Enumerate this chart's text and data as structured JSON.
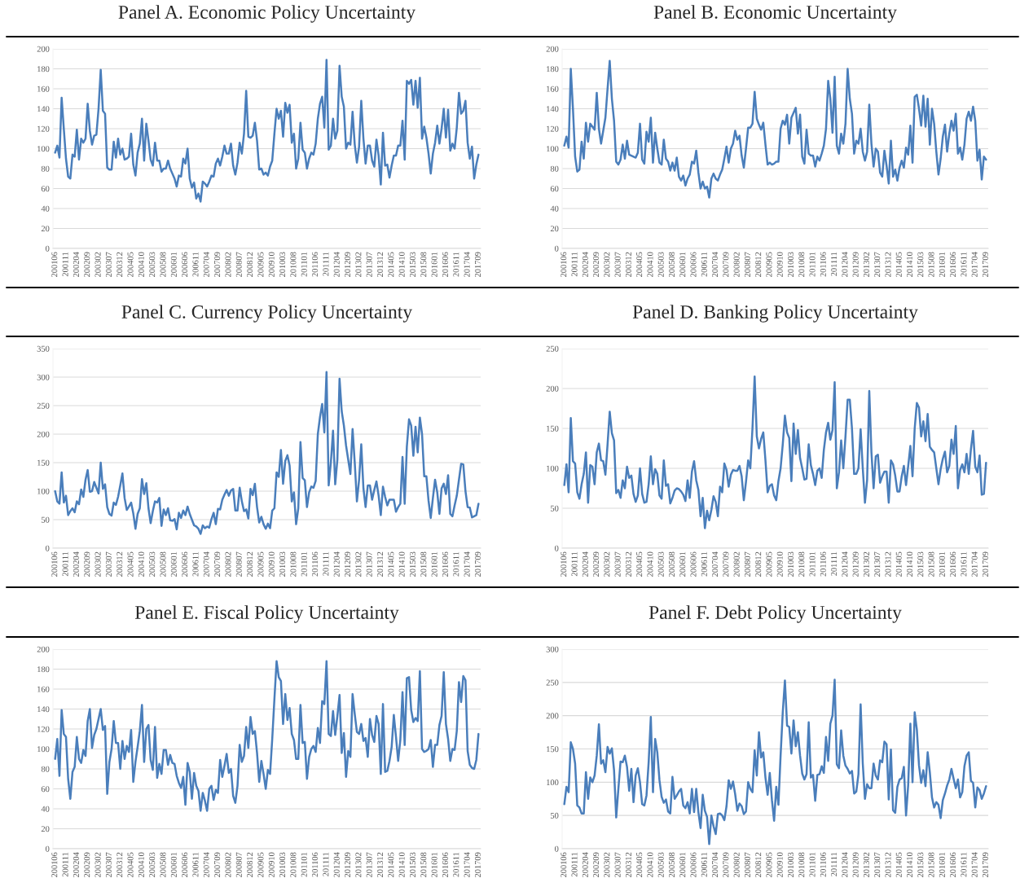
{
  "chart_data": [
    {
      "type": "line",
      "title": "Panel A. Economic Policy Uncertainty",
      "grid": "y",
      "ylim": [
        0,
        200
      ],
      "yticks": [
        0,
        20,
        40,
        60,
        80,
        100,
        120,
        140,
        160,
        180,
        200
      ],
      "categories": [
        "200106",
        null,
        null,
        null,
        null,
        "200111",
        null,
        null,
        null,
        null,
        "200204",
        null,
        null,
        null,
        null,
        "200209",
        null,
        null,
        null,
        null,
        "200302",
        null,
        null,
        null,
        null,
        "200307",
        null,
        null,
        null,
        null,
        "200312",
        null,
        null,
        null,
        null,
        "200405",
        null,
        null,
        null,
        null,
        "200410",
        null,
        null,
        null,
        null,
        "200503",
        null,
        null,
        null,
        null,
        "200508",
        null,
        null,
        null,
        null,
        "200601",
        null,
        null,
        null,
        null,
        "200606",
        null,
        null,
        null,
        null,
        "200611",
        null,
        null,
        null,
        null,
        "200704",
        null,
        null,
        null,
        null,
        "200709",
        null,
        null,
        null,
        null,
        "200802",
        null,
        null,
        null,
        null,
        "200807",
        null,
        null,
        null,
        null,
        "200812",
        null,
        null,
        null,
        null,
        "200905",
        null,
        null,
        null,
        null,
        "200910",
        null,
        null,
        null,
        null,
        "201003",
        null,
        null,
        null,
        null,
        "201008",
        null,
        null,
        null,
        null,
        "201101",
        null,
        null,
        null,
        null,
        "201106",
        null,
        null,
        null,
        null,
        "201111",
        null,
        null,
        null,
        null,
        "201204",
        null,
        null,
        null,
        null,
        "201209",
        null,
        null,
        null,
        null,
        "201302",
        null,
        null,
        null,
        null,
        "201307",
        null,
        null,
        null,
        null,
        "201312",
        null,
        null,
        null,
        null,
        "201405",
        null,
        null,
        null,
        null,
        "201410",
        null,
        null,
        null,
        null,
        "201503",
        null,
        null,
        null,
        null,
        "201508",
        null,
        null,
        null,
        null,
        "201601",
        null,
        null,
        null,
        null,
        "201606",
        null,
        null,
        null,
        null,
        "201611",
        null,
        null,
        null,
        null,
        "201704",
        null,
        null,
        null,
        null,
        "201709"
      ],
      "series": [
        {
          "color": "#4a7ebb",
          "values": [
            96,
            103,
            91,
            151,
            120,
            90,
            72,
            70,
            94,
            92,
            119,
            89,
            110,
            106,
            110,
            145,
            118,
            104,
            113,
            114,
            140,
            179,
            138,
            135,
            81,
            79,
            79,
            107,
            91,
            110,
            94,
            100,
            89,
            90,
            92,
            115,
            84,
            73,
            96,
            105,
            130,
            88,
            125,
            108,
            89,
            83,
            106,
            88,
            88,
            77,
            80,
            80,
            88,
            80,
            75,
            70,
            62,
            73,
            72,
            90,
            85,
            100,
            70,
            61,
            66,
            50,
            55,
            47,
            67,
            65,
            62,
            67,
            73,
            72,
            85,
            90,
            83,
            92,
            103,
            95,
            95,
            105,
            83,
            74,
            86,
            106,
            95,
            115,
            158,
            112,
            111,
            113,
            126,
            108,
            79,
            80,
            74,
            76,
            73,
            82,
            88,
            115,
            140,
            130,
            138,
            112,
            146,
            136,
            144,
            106,
            115,
            80,
            90,
            126,
            99,
            96,
            80,
            90,
            96,
            94,
            105,
            130,
            145,
            152,
            121,
            189,
            99,
            103,
            130,
            110,
            118,
            183,
            152,
            142,
            100,
            106,
            104,
            137,
            104,
            86,
            102,
            148,
            110,
            85,
            103,
            103,
            88,
            82,
            109,
            93,
            64,
            116,
            83,
            84,
            71,
            83,
            93,
            93,
            103,
            103,
            128,
            89,
            168,
            165,
            169,
            144,
            168,
            141,
            171,
            110,
            122,
            111,
            95,
            75,
            95,
            106,
            123,
            105,
            120,
            140,
            111,
            139,
            98,
            105,
            100,
            121,
            156,
            135,
            138,
            148,
            106,
            90,
            102,
            70,
            84,
            94
          ]
        }
      ]
    },
    {
      "type": "line",
      "title": "Panel B. Economic Uncertainty",
      "grid": "y",
      "ylim": [
        0,
        200
      ],
      "yticks": [
        0,
        20,
        40,
        60,
        80,
        100,
        120,
        140,
        160,
        180,
        200
      ],
      "categories": [
        "200106",
        null,
        null,
        null,
        null,
        "200111",
        null,
        null,
        null,
        null,
        "200204",
        null,
        null,
        null,
        null,
        "200209",
        null,
        null,
        null,
        null,
        "200302",
        null,
        null,
        null,
        null,
        "200307",
        null,
        null,
        null,
        null,
        "200312",
        null,
        null,
        null,
        null,
        "200405",
        null,
        null,
        null,
        null,
        "200410",
        null,
        null,
        null,
        null,
        "200503",
        null,
        null,
        null,
        null,
        "200508",
        null,
        null,
        null,
        null,
        "200601",
        null,
        null,
        null,
        null,
        "200606",
        null,
        null,
        null,
        null,
        "200611",
        null,
        null,
        null,
        null,
        "200704",
        null,
        null,
        null,
        null,
        "200709",
        null,
        null,
        null,
        null,
        "200802",
        null,
        null,
        null,
        null,
        "200807",
        null,
        null,
        null,
        null,
        "200812",
        null,
        null,
        null,
        null,
        "200905",
        null,
        null,
        null,
        null,
        "200910",
        null,
        null,
        null,
        null,
        "201003",
        null,
        null,
        null,
        null,
        "201008",
        null,
        null,
        null,
        null,
        "201101",
        null,
        null,
        null,
        null,
        "201106",
        null,
        null,
        null,
        null,
        "201111",
        null,
        null,
        null,
        null,
        "201204",
        null,
        null,
        null,
        null,
        "201209",
        null,
        null,
        null,
        null,
        "201302",
        null,
        null,
        null,
        null,
        "201307",
        null,
        null,
        null,
        null,
        "201312",
        null,
        null,
        null,
        null,
        "201405",
        null,
        null,
        null,
        null,
        "201410",
        null,
        null,
        null,
        null,
        "201503",
        null,
        null,
        null,
        null,
        "201508",
        null,
        null,
        null,
        null,
        "201601",
        null,
        null,
        null,
        null,
        "201606",
        null,
        null,
        null,
        null,
        "201611",
        null,
        null,
        null,
        null,
        "201704",
        null,
        null,
        null,
        null,
        "201709"
      ],
      "series": [
        {
          "color": "#4a7ebb",
          "values": [
            103,
            112,
            101,
            180,
            140,
            92,
            77,
            79,
            107,
            90,
            126,
            107,
            125,
            122,
            119,
            156,
            120,
            105,
            118,
            131,
            160,
            188,
            150,
            128,
            87,
            84,
            89,
            104,
            90,
            108,
            94,
            93,
            92,
            91,
            96,
            125,
            89,
            85,
            117,
            107,
            131,
            86,
            116,
            100,
            86,
            84,
            109,
            90,
            87,
            78,
            86,
            78,
            91,
            72,
            68,
            73,
            63,
            70,
            74,
            87,
            85,
            98,
            76,
            60,
            67,
            60,
            62,
            51,
            70,
            75,
            70,
            68,
            74,
            79,
            90,
            102,
            86,
            100,
            105,
            118,
            109,
            113,
            93,
            81,
            100,
            121,
            121,
            125,
            157,
            130,
            124,
            119,
            126,
            104,
            84,
            86,
            84,
            85,
            87,
            87,
            120,
            128,
            124,
            134,
            105,
            131,
            136,
            141,
            115,
            134,
            92,
            85,
            119,
            95,
            93,
            93,
            82,
            92,
            88,
            95,
            103,
            120,
            168,
            150,
            116,
            172,
            103,
            95,
            115,
            105,
            125,
            180,
            150,
            135,
            95,
            108,
            105,
            120,
            97,
            88,
            97,
            144,
            105,
            82,
            100,
            97,
            76,
            72,
            98,
            83,
            65,
            108,
            72,
            79,
            68,
            81,
            88,
            81,
            101,
            94,
            123,
            86,
            152,
            154,
            140,
            123,
            153,
            122,
            150,
            104,
            140,
            125,
            97,
            74,
            90,
            112,
            124,
            97,
            115,
            128,
            118,
            135,
            95,
            101,
            89,
            104,
            130,
            137,
            128,
            142,
            128,
            88,
            99,
            69,
            92,
            89
          ]
        }
      ]
    },
    {
      "type": "line",
      "title": "Panel C. Currency Policy Uncertainty",
      "grid": "y",
      "ylim": [
        0,
        350
      ],
      "yticks": [
        0,
        50,
        100,
        150,
        200,
        250,
        300,
        350
      ],
      "categories": [
        "200106",
        null,
        null,
        null,
        null,
        "200111",
        null,
        null,
        null,
        null,
        "200204",
        null,
        null,
        null,
        null,
        "200209",
        null,
        null,
        null,
        null,
        "200302",
        null,
        null,
        null,
        null,
        "200307",
        null,
        null,
        null,
        null,
        "200312",
        null,
        null,
        null,
        null,
        "200405",
        null,
        null,
        null,
        null,
        "200410",
        null,
        null,
        null,
        null,
        "200503",
        null,
        null,
        null,
        null,
        "200508",
        null,
        null,
        null,
        null,
        "200601",
        null,
        null,
        null,
        null,
        "200606",
        null,
        null,
        null,
        null,
        "200611",
        null,
        null,
        null,
        null,
        "200704",
        null,
        null,
        null,
        null,
        "200709",
        null,
        null,
        null,
        null,
        "200802",
        null,
        null,
        null,
        null,
        "200807",
        null,
        null,
        null,
        null,
        "200812",
        null,
        null,
        null,
        null,
        "200905",
        null,
        null,
        null,
        null,
        "200910",
        null,
        null,
        null,
        null,
        "201003",
        null,
        null,
        null,
        null,
        "201008",
        null,
        null,
        null,
        null,
        "201101",
        null,
        null,
        null,
        null,
        "201106",
        null,
        null,
        null,
        null,
        "201111",
        null,
        null,
        null,
        null,
        "201204",
        null,
        null,
        null,
        null,
        "201209",
        null,
        null,
        null,
        null,
        "201302",
        null,
        null,
        null,
        null,
        "201307",
        null,
        null,
        null,
        null,
        "201312",
        null,
        null,
        null,
        null,
        "201405",
        null,
        null,
        null,
        null,
        "201410",
        null,
        null,
        null,
        null,
        "201503",
        null,
        null,
        null,
        null,
        "201508",
        null,
        null,
        null,
        null,
        "201601",
        null,
        null,
        null,
        null,
        "201606",
        null,
        null,
        null,
        null,
        "201611",
        null,
        null,
        null,
        null,
        "201704",
        null,
        null,
        null,
        null,
        "201709"
      ],
      "series": [
        {
          "color": "#4a7ebb",
          "values": [
            100,
            82,
            78,
            133,
            80,
            92,
            58,
            65,
            70,
            63,
            82,
            77,
            103,
            90,
            120,
            137,
            99,
            100,
            116,
            106,
            96,
            150,
            104,
            112,
            72,
            60,
            57,
            80,
            76,
            90,
            110,
            131,
            88,
            67,
            73,
            80,
            61,
            34,
            60,
            70,
            121,
            95,
            114,
            70,
            44,
            65,
            82,
            80,
            88,
            39,
            68,
            58,
            70,
            49,
            48,
            51,
            33,
            62,
            53,
            66,
            58,
            73,
            60,
            50,
            40,
            38,
            34,
            25,
            40,
            35,
            38,
            36,
            51,
            62,
            42,
            69,
            68,
            85,
            94,
            102,
            92,
            101,
            104,
            66,
            66,
            106,
            82,
            65,
            68,
            52,
            104,
            93,
            113,
            72,
            45,
            55,
            42,
            34,
            43,
            35,
            66,
            70,
            133,
            125,
            172,
            113,
            153,
            163,
            145,
            82,
            98,
            42,
            70,
            186,
            123,
            119,
            72,
            98,
            108,
            106,
            118,
            200,
            230,
            253,
            203,
            309,
            110,
            150,
            206,
            112,
            155,
            297,
            240,
            215,
            180,
            155,
            130,
            209,
            150,
            82,
            120,
            182,
            105,
            72,
            110,
            110,
            85,
            102,
            117,
            92,
            58,
            108,
            90,
            75,
            85,
            85,
            85,
            64,
            72,
            78,
            160,
            78,
            178,
            226,
            215,
            162,
            213,
            168,
            229,
            200,
            126,
            126,
            83,
            53,
            88,
            120,
            98,
            60,
            105,
            113,
            95,
            128,
            60,
            56,
            75,
            92,
            120,
            148,
            147,
            100,
            72,
            71,
            54,
            56,
            58,
            78
          ]
        }
      ]
    },
    {
      "type": "line",
      "title": "Panel D. Banking Policy Uncertainty",
      "grid": "y",
      "ylim": [
        0,
        250
      ],
      "yticks": [
        0,
        50,
        100,
        150,
        200,
        250
      ],
      "categories": [
        "200106",
        null,
        null,
        null,
        null,
        "200111",
        null,
        null,
        null,
        null,
        "200204",
        null,
        null,
        null,
        null,
        "200209",
        null,
        null,
        null,
        null,
        "200302",
        null,
        null,
        null,
        null,
        "200307",
        null,
        null,
        null,
        null,
        "200312",
        null,
        null,
        null,
        null,
        "200405",
        null,
        null,
        null,
        null,
        "200410",
        null,
        null,
        null,
        null,
        "200503",
        null,
        null,
        null,
        null,
        "200508",
        null,
        null,
        null,
        null,
        "200601",
        null,
        null,
        null,
        null,
        "200606",
        null,
        null,
        null,
        null,
        "200611",
        null,
        null,
        null,
        null,
        "200704",
        null,
        null,
        null,
        null,
        "200709",
        null,
        null,
        null,
        null,
        "200802",
        null,
        null,
        null,
        null,
        "200807",
        null,
        null,
        null,
        null,
        "200812",
        null,
        null,
        null,
        null,
        "200905",
        null,
        null,
        null,
        null,
        "200910",
        null,
        null,
        null,
        null,
        "201003",
        null,
        null,
        null,
        null,
        "201008",
        null,
        null,
        null,
        null,
        "201101",
        null,
        null,
        null,
        null,
        "201106",
        null,
        null,
        null,
        null,
        "201111",
        null,
        null,
        null,
        null,
        "201204",
        null,
        null,
        null,
        null,
        "201209",
        null,
        null,
        null,
        null,
        "201302",
        null,
        null,
        null,
        null,
        "201307",
        null,
        null,
        null,
        null,
        "201312",
        null,
        null,
        null,
        null,
        "201405",
        null,
        null,
        null,
        null,
        "201410",
        null,
        null,
        null,
        null,
        "201503",
        null,
        null,
        null,
        null,
        "201508",
        null,
        null,
        null,
        null,
        "201601",
        null,
        null,
        null,
        null,
        "201606",
        null,
        null,
        null,
        null,
        "201611",
        null,
        null,
        null,
        null,
        "201704",
        null,
        null,
        null,
        null,
        "201709"
      ],
      "series": [
        {
          "color": "#4a7ebb",
          "values": [
            79,
            105,
            70,
            163,
            109,
            106,
            70,
            62,
            80,
            93,
            120,
            57,
            104,
            102,
            80,
            120,
            131,
            110,
            109,
            92,
            130,
            171,
            144,
            135,
            69,
            73,
            63,
            85,
            75,
            102,
            88,
            91,
            68,
            58,
            66,
            100,
            68,
            57,
            58,
            80,
            115,
            80,
            99,
            93,
            66,
            62,
            110,
            78,
            80,
            56,
            63,
            72,
            75,
            74,
            71,
            67,
            59,
            85,
            63,
            96,
            109,
            85,
            73,
            40,
            63,
            25,
            47,
            35,
            48,
            65,
            58,
            40,
            77,
            70,
            106,
            98,
            77,
            92,
            98,
            97,
            97,
            103,
            90,
            60,
            83,
            110,
            100,
            150,
            215,
            140,
            125,
            137,
            145,
            110,
            70,
            78,
            80,
            66,
            60,
            84,
            100,
            130,
            166,
            145,
            138,
            84,
            156,
            118,
            148,
            113,
            100,
            86,
            87,
            130,
            104,
            93,
            79,
            97,
            100,
            88,
            123,
            145,
            157,
            136,
            148,
            208,
            75,
            95,
            135,
            100,
            140,
            186,
            186,
            150,
            93,
            93,
            100,
            149,
            100,
            57,
            85,
            197,
            120,
            75,
            115,
            117,
            82,
            90,
            96,
            96,
            57,
            110,
            105,
            91,
            71,
            71,
            90,
            103,
            79,
            103,
            128,
            90,
            150,
            182,
            176,
            140,
            159,
            134,
            168,
            127,
            123,
            120,
            100,
            80,
            99,
            112,
            121,
            95,
            103,
            136,
            118,
            153,
            75,
            98,
            105,
            95,
            118,
            93,
            124,
            147,
            102,
            95,
            116,
            67,
            68,
            107
          ]
        }
      ]
    },
    {
      "type": "line",
      "title": "Panel E. Fiscal Policy Uncertainty",
      "grid": "y",
      "ylim": [
        0,
        200
      ],
      "yticks": [
        0,
        20,
        40,
        60,
        80,
        100,
        120,
        140,
        160,
        180,
        200
      ],
      "categories": [
        "200106",
        null,
        null,
        null,
        null,
        "200111",
        null,
        null,
        null,
        null,
        "200204",
        null,
        null,
        null,
        null,
        "200209",
        null,
        null,
        null,
        null,
        "200302",
        null,
        null,
        null,
        null,
        "200307",
        null,
        null,
        null,
        null,
        "200312",
        null,
        null,
        null,
        null,
        "200405",
        null,
        null,
        null,
        null,
        "200410",
        null,
        null,
        null,
        null,
        "200503",
        null,
        null,
        null,
        null,
        "200508",
        null,
        null,
        null,
        null,
        "200601",
        null,
        null,
        null,
        null,
        "200606",
        null,
        null,
        null,
        null,
        "200611",
        null,
        null,
        null,
        null,
        "200704",
        null,
        null,
        null,
        null,
        "200709",
        null,
        null,
        null,
        null,
        "200802",
        null,
        null,
        null,
        null,
        "200807",
        null,
        null,
        null,
        null,
        "200812",
        null,
        null,
        null,
        null,
        "200905",
        null,
        null,
        null,
        null,
        "200910",
        null,
        null,
        null,
        null,
        "201003",
        null,
        null,
        null,
        null,
        "201008",
        null,
        null,
        null,
        null,
        "201101",
        null,
        null,
        null,
        null,
        "201106",
        null,
        null,
        null,
        null,
        "201111",
        null,
        null,
        null,
        null,
        "201204",
        null,
        null,
        null,
        null,
        "201209",
        null,
        null,
        null,
        null,
        "201302",
        null,
        null,
        null,
        null,
        "201307",
        null,
        null,
        null,
        null,
        "201312",
        null,
        null,
        null,
        null,
        "201405",
        null,
        null,
        null,
        null,
        "201410",
        null,
        null,
        null,
        null,
        "201503",
        null,
        null,
        null,
        null,
        "201508",
        null,
        null,
        null,
        null,
        "201601",
        null,
        null,
        null,
        null,
        "201606",
        null,
        null,
        null,
        null,
        "201611",
        null,
        null,
        null,
        null,
        "201704",
        null,
        null,
        null,
        null,
        "201709"
      ],
      "series": [
        {
          "color": "#4a7ebb",
          "values": [
            90,
            110,
            73,
            139,
            115,
            112,
            70,
            50,
            77,
            82,
            112,
            90,
            86,
            99,
            93,
            128,
            140,
            101,
            114,
            120,
            130,
            140,
            119,
            123,
            55,
            87,
            100,
            128,
            106,
            106,
            80,
            108,
            90,
            103,
            97,
            119,
            67,
            87,
            102,
            118,
            144,
            87,
            120,
            124,
            89,
            79,
            122,
            71,
            85,
            75,
            99,
            99,
            84,
            94,
            86,
            85,
            73,
            66,
            61,
            72,
            44,
            86,
            77,
            50,
            76,
            63,
            58,
            38,
            56,
            48,
            38,
            60,
            63,
            49,
            59,
            56,
            89,
            72,
            83,
            95,
            76,
            80,
            53,
            46,
            63,
            104,
            87,
            93,
            122,
            101,
            132,
            115,
            118,
            96,
            67,
            88,
            75,
            60,
            79,
            75,
            110,
            150,
            188,
            172,
            168,
            125,
            155,
            129,
            141,
            115,
            109,
            90,
            90,
            144,
            106,
            107,
            70,
            92,
            100,
            103,
            97,
            121,
            106,
            148,
            145,
            188,
            115,
            113,
            138,
            114,
            133,
            154,
            96,
            116,
            72,
            98,
            92,
            155,
            135,
            117,
            115,
            125,
            108,
            111,
            92,
            130,
            114,
            107,
            133,
            125,
            75,
            145,
            77,
            78,
            88,
            102,
            134,
            112,
            88,
            109,
            157,
            104,
            171,
            172,
            139,
            127,
            131,
            128,
            178,
            100,
            97,
            98,
            100,
            109,
            82,
            104,
            104,
            124,
            133,
            177,
            125,
            110,
            88,
            100,
            99,
            118,
            167,
            147,
            173,
            169,
            98,
            84,
            81,
            80,
            89,
            115
          ]
        }
      ]
    },
    {
      "type": "line",
      "title": "Panel F. Debt Policy Uncertainty",
      "grid": "y",
      "ylim": [
        0,
        300
      ],
      "yticks": [
        0,
        50,
        100,
        150,
        200,
        250,
        300
      ],
      "categories": [
        "200106",
        null,
        null,
        null,
        null,
        "200111",
        null,
        null,
        null,
        null,
        "200204",
        null,
        null,
        null,
        null,
        "200209",
        null,
        null,
        null,
        null,
        "200302",
        null,
        null,
        null,
        null,
        "200307",
        null,
        null,
        null,
        null,
        "200312",
        null,
        null,
        null,
        null,
        "200405",
        null,
        null,
        null,
        null,
        "200410",
        null,
        null,
        null,
        null,
        "200503",
        null,
        null,
        null,
        null,
        "200508",
        null,
        null,
        null,
        null,
        "200601",
        null,
        null,
        null,
        null,
        "200606",
        null,
        null,
        null,
        null,
        "200611",
        null,
        null,
        null,
        null,
        "200704",
        null,
        null,
        null,
        null,
        "200709",
        null,
        null,
        null,
        null,
        "200802",
        null,
        null,
        null,
        null,
        "200807",
        null,
        null,
        null,
        null,
        "200812",
        null,
        null,
        null,
        null,
        "200905",
        null,
        null,
        null,
        null,
        "200910",
        null,
        null,
        null,
        null,
        "201003",
        null,
        null,
        null,
        null,
        "201008",
        null,
        null,
        null,
        null,
        "201101",
        null,
        null,
        null,
        null,
        "201106",
        null,
        null,
        null,
        null,
        "201111",
        null,
        null,
        null,
        null,
        "201204",
        null,
        null,
        null,
        null,
        "201209",
        null,
        null,
        null,
        null,
        "201302",
        null,
        null,
        null,
        null,
        "201307",
        null,
        null,
        null,
        null,
        "201312",
        null,
        null,
        null,
        null,
        "201405",
        null,
        null,
        null,
        null,
        "201410",
        null,
        null,
        null,
        null,
        "201503",
        null,
        null,
        null,
        null,
        "201508",
        null,
        null,
        null,
        null,
        "201601",
        null,
        null,
        null,
        null,
        "201606",
        null,
        null,
        null,
        null,
        "201611",
        null,
        null,
        null,
        null,
        "201704",
        null,
        null,
        null,
        null,
        "201709"
      ],
      "series": [
        {
          "color": "#4a7ebb",
          "values": [
            67,
            93,
            85,
            160,
            150,
            128,
            65,
            62,
            53,
            53,
            115,
            75,
            107,
            100,
            110,
            140,
            187,
            128,
            133,
            115,
            153,
            143,
            151,
            118,
            47,
            90,
            131,
            130,
            140,
            123,
            87,
            120,
            70,
            110,
            121,
            100,
            67,
            65,
            80,
            130,
            198,
            85,
            165,
            145,
            103,
            78,
            69,
            74,
            56,
            53,
            108,
            75,
            80,
            86,
            90,
            65,
            61,
            70,
            53,
            90,
            55,
            90,
            55,
            31,
            81,
            57,
            48,
            7,
            50,
            34,
            22,
            52,
            53,
            50,
            43,
            64,
            103,
            90,
            101,
            82,
            57,
            68,
            64,
            52,
            56,
            100,
            90,
            85,
            148,
            110,
            175,
            137,
            145,
            107,
            81,
            114,
            73,
            42,
            93,
            66,
            140,
            205,
            253,
            185,
            183,
            143,
            193,
            154,
            175,
            140,
            113,
            104,
            112,
            190,
            107,
            111,
            72,
            111,
            112,
            124,
            114,
            168,
            132,
            188,
            200,
            254,
            127,
            121,
            178,
            140,
            125,
            120,
            113,
            117,
            83,
            86,
            112,
            217,
            128,
            75,
            97,
            91,
            91,
            128,
            110,
            104,
            133,
            130,
            161,
            157,
            74,
            149,
            58,
            54,
            93,
            104,
            106,
            123,
            50,
            96,
            188,
            100,
            205,
            179,
            125,
            99,
            118,
            94,
            145,
            115,
            77,
            62,
            70,
            66,
            46,
            73,
            83,
            95,
            104,
            120,
            105,
            91,
            104,
            77,
            85,
            124,
            140,
            145,
            102,
            99,
            62,
            92,
            88,
            75,
            83,
            94
          ]
        }
      ]
    }
  ]
}
